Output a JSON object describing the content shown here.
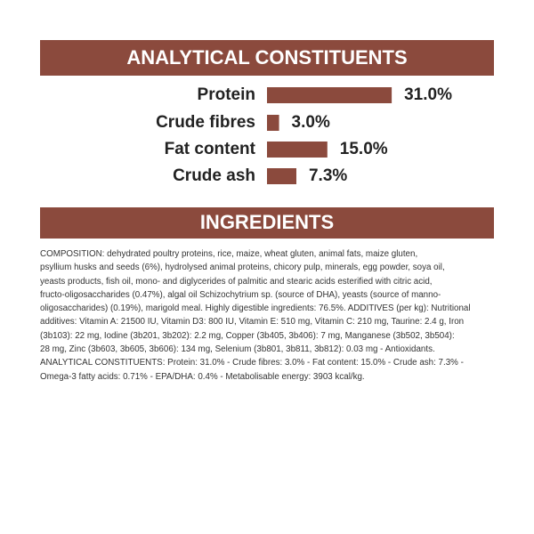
{
  "chart_data": {
    "type": "bar",
    "title": "ANALYTICAL CONSTITUENTS",
    "categories": [
      "Protein",
      "Crude fibres",
      "Fat content",
      "Crude ash"
    ],
    "values": [
      31.0,
      3.0,
      15.0,
      7.3
    ],
    "value_labels": [
      "31.0%",
      "3.0%",
      "15.0%",
      "7.3%"
    ],
    "color": "#8b4a3d"
  },
  "ingredients": {
    "title": "INGREDIENTS",
    "lines": [
      "COMPOSITION: dehydrated poultry proteins, rice, maize, wheat gluten, animal fats, maize gluten,",
      "psyllium husks and seeds (6%), hydrolysed animal proteins, chicory pulp, minerals, egg powder, soya oil,",
      "yeasts products, fish oil, mono- and diglycerides of palmitic and stearic acids esterified with citric acid,",
      "fructo-oligosaccharides (0.47%), algal oil Schizochytrium sp. (source of DHA), yeasts (source of manno-",
      "oligosaccharides) (0.19%), marigold meal. Highly digestible ingredients: 76.5%. ADDITIVES (per kg): Nutritional",
      "additives: Vitamin A: 21500 IU, Vitamin D3: 800 IU, Vitamin E: 510 mg, Vitamin C: 210 mg, Taurine: 2.4 g, Iron",
      "(3b103): 22 mg, Iodine (3b201, 3b202): 2.2 mg, Copper (3b405, 3b406): 7 mg, Manganese (3b502, 3b504):",
      "28 mg, Zinc (3b603, 3b605, 3b606): 134 mg, Selenium (3b801, 3b811, 3b812): 0.03 mg - Antioxidants.",
      "ANALYTICAL CONSTITUENTS: Protein: 31.0% - Crude fibres: 3.0% - Fat content: 15.0% - Crude ash: 7.3% -",
      "Omega-3 fatty acids: 0.71% - EPA/DHA: 0.4% - Metabolisable energy: 3903 kcal/kg."
    ]
  }
}
